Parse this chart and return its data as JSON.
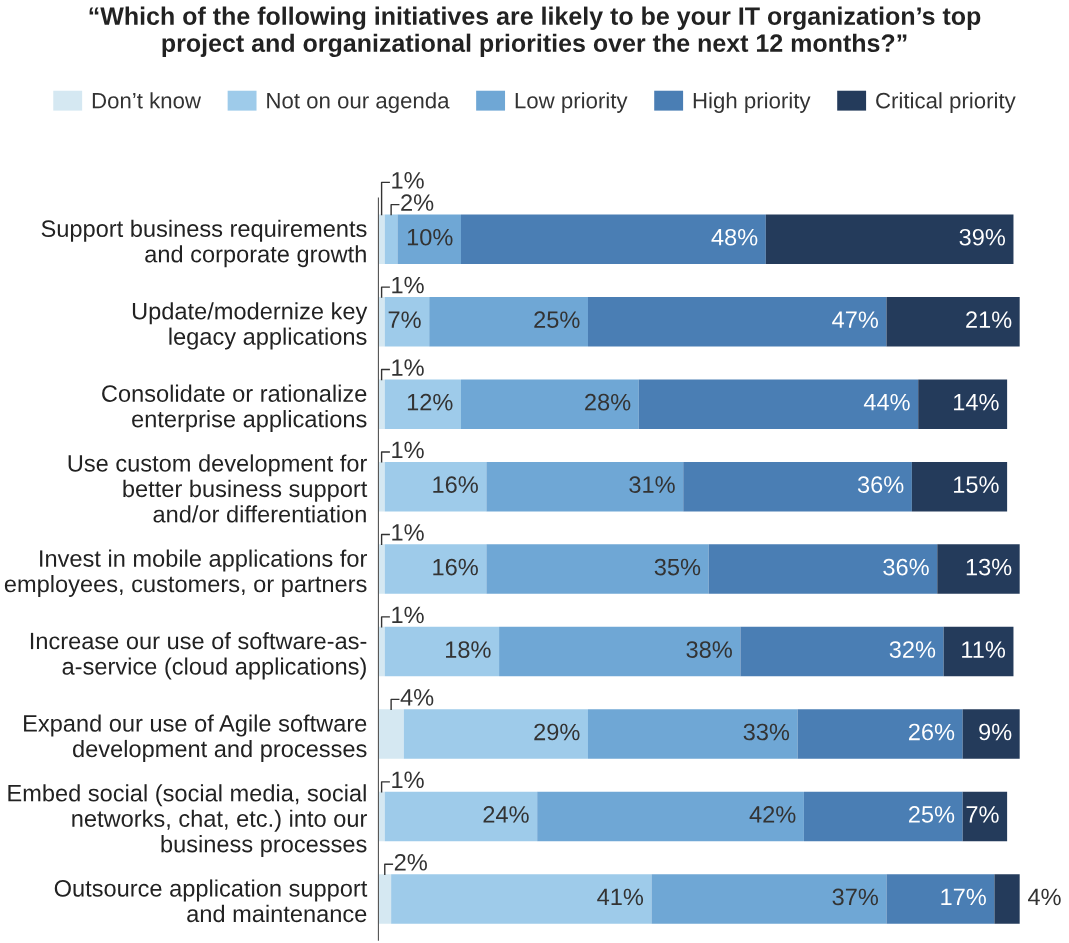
{
  "chart_data": {
    "type": "bar",
    "orientation": "horizontal",
    "stacked": true,
    "title": "“Which of the following initiatives are likely to be your IT organization’s top\nproject and organizational priorities over the next 12 months?”",
    "categories": [
      "Support business requirements\nand corporate growth",
      "Update/modernize key\nlegacy applications",
      "Consolidate or rationalize\nenterprise applications",
      "Use custom development for\nbetter business support\nand/or differentiation",
      "Invest in mobile applications for\nemployees, customers, or partners",
      "Increase our use of software-as-\na-service (cloud applications)",
      "Expand our use of Agile software\ndevelopment and processes",
      "Embed social (social media, social\nnetworks, chat, etc.) into our\nbusiness processes",
      "Outsource application support\nand maintenance"
    ],
    "series": [
      {
        "name": "Don’t know",
        "color": "#d5e8f2",
        "values": [
          1,
          1,
          1,
          1,
          1,
          1,
          4,
          1,
          2
        ],
        "value_labels": [
          "1%",
          "1%",
          "1%",
          "1%",
          "1%",
          "1%",
          "4%",
          "1%",
          "2%"
        ]
      },
      {
        "name": "Not on our agenda",
        "color": "#9ecbea",
        "values": [
          2,
          7,
          12,
          16,
          16,
          18,
          29,
          24,
          41
        ],
        "value_labels": [
          "2%",
          "7%",
          "12%",
          "16%",
          "16%",
          "18%",
          "29%",
          "24%",
          "41%"
        ]
      },
      {
        "name": "Low priority",
        "color": "#6fa7d5",
        "values": [
          10,
          25,
          28,
          31,
          35,
          38,
          33,
          42,
          37
        ],
        "value_labels": [
          "10%",
          "25%",
          "28%",
          "31%",
          "35%",
          "38%",
          "33%",
          "42%",
          "37%"
        ]
      },
      {
        "name": "High priority",
        "color": "#4a7eb4",
        "values": [
          48,
          47,
          44,
          36,
          36,
          32,
          26,
          25,
          17
        ],
        "value_labels": [
          "48%",
          "47%",
          "44%",
          "36%",
          "36%",
          "32%",
          "26%",
          "25%",
          "17%"
        ]
      },
      {
        "name": "Critical priority",
        "color": "#243b5b",
        "values": [
          39,
          21,
          14,
          15,
          13,
          11,
          9,
          7,
          4
        ],
        "value_labels": [
          "39%",
          "21%",
          "14%",
          "15%",
          "13%",
          "11%",
          "9%",
          "7%",
          "4%"
        ]
      }
    ],
    "legend": "top",
    "tick_labels": "y",
    "grid": false
  }
}
